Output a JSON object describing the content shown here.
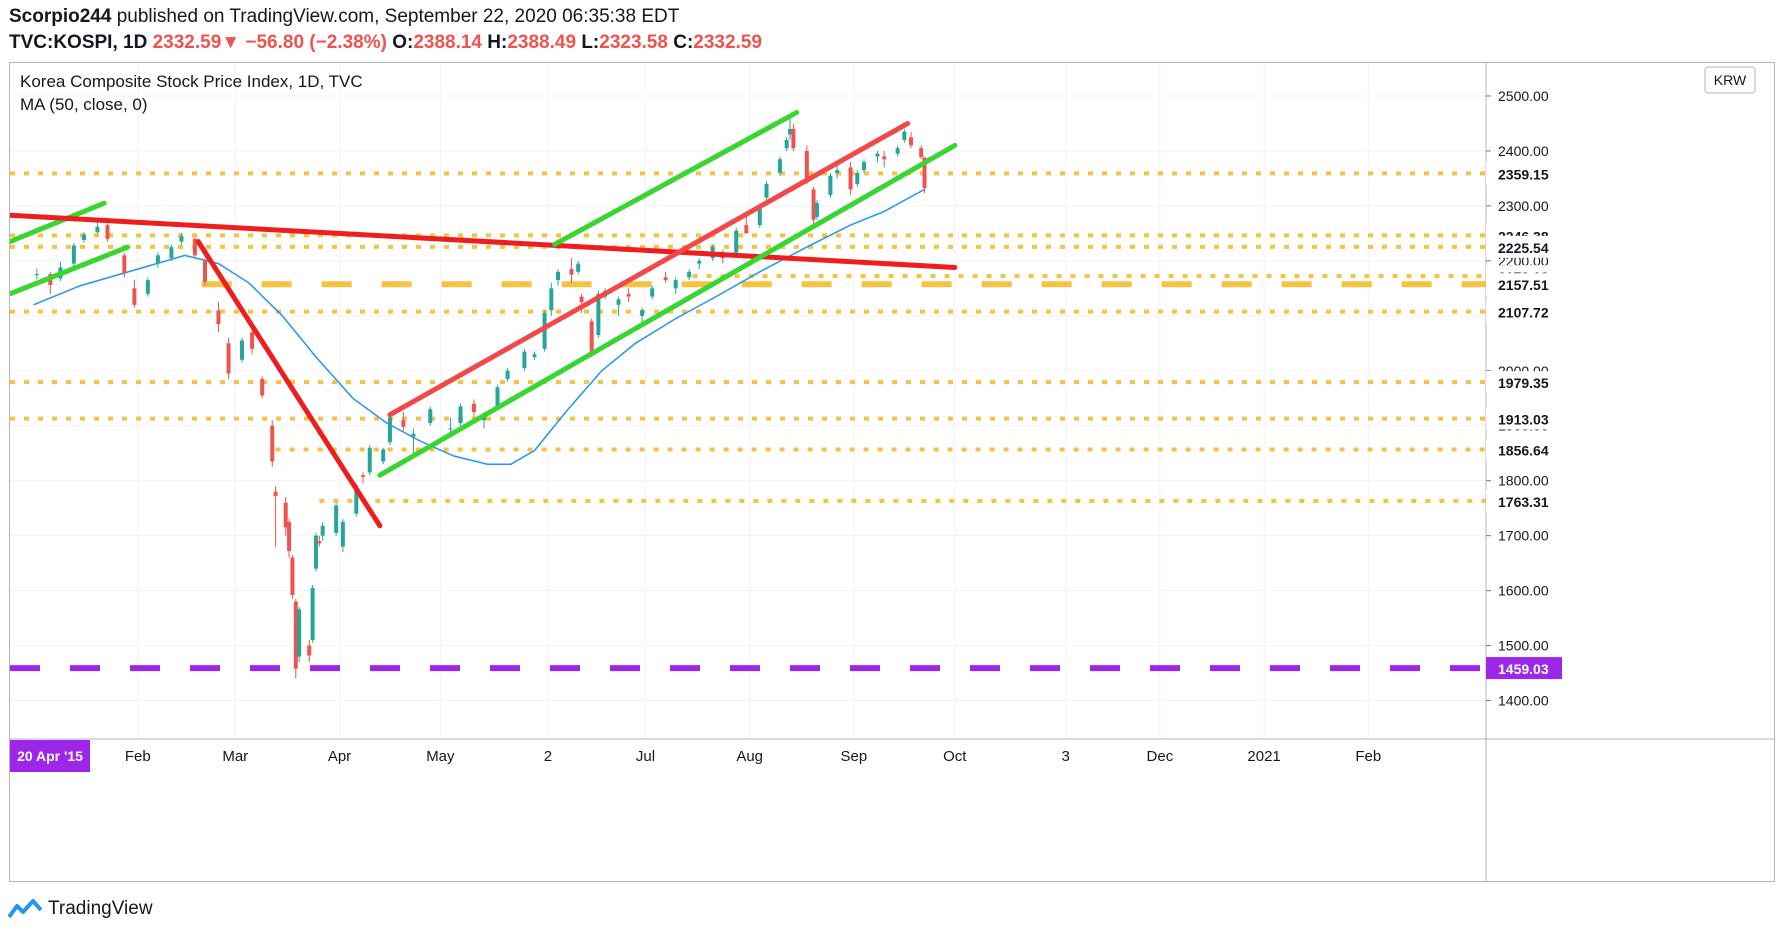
{
  "header": {
    "author": "Scorpio244",
    "published_text": "published on TradingView.com, September 22, 2020 06:35:38 EDT",
    "symbol": "TVC:KOSPI, 1D",
    "last": "2332.59",
    "change": "−56.80 (−2.38%)",
    "o_label": "O:",
    "o_value": "2388.14",
    "h_label": "H:",
    "h_value": "2388.49",
    "l_label": "L:",
    "l_value": "2323.58",
    "c_label": "C:",
    "c_value": "2332.59"
  },
  "legend": {
    "title": "Korea Composite Stock Price Index, 1D, TVC",
    "indicator": "MA (50, close, 0)"
  },
  "footer": {
    "brand": "TradingView"
  },
  "colors": {
    "up": "#26a69a",
    "down": "#ef5350",
    "ma": "#2196f3",
    "support_green": "#39d531",
    "resistance_red": "#ef1d1d",
    "level_yellow": "#f5c242",
    "level_purple": "#9c27e8",
    "axis_text": "#131722"
  },
  "chart_data": {
    "type": "candlestick",
    "currency": "KRW",
    "y_ticks": [
      "1400.00",
      "1500.00",
      "1600.00",
      "1700.00",
      "1800.00",
      "1900.00",
      "2000.00",
      "2100.00",
      "2200.00",
      "2300.00",
      "2400.00",
      "2500.00"
    ],
    "x_labels": [
      {
        "label": "20 Apr '15",
        "date": "2019-12-31",
        "badge": true
      },
      {
        "label": "Feb",
        "date": "2020-02-01"
      },
      {
        "label": "Mar",
        "date": "2020-03-01"
      },
      {
        "label": "Apr",
        "date": "2020-04-01"
      },
      {
        "label": "May",
        "date": "2020-05-01"
      },
      {
        "label": "2",
        "date": "2020-06-02"
      },
      {
        "label": "Jul",
        "date": "2020-07-01"
      },
      {
        "label": "Aug",
        "date": "2020-08-01"
      },
      {
        "label": "Sep",
        "date": "2020-09-01"
      },
      {
        "label": "Oct",
        "date": "2020-10-01"
      },
      {
        "label": "3",
        "date": "2020-11-03"
      },
      {
        "label": "Dec",
        "date": "2020-12-01"
      },
      {
        "label": "2021",
        "date": "2021-01-01"
      },
      {
        "label": "Feb",
        "date": "2021-02-01"
      }
    ],
    "x_range": [
      "2019-12-25",
      "2021-03-08"
    ],
    "y_range": [
      1330,
      2560
    ],
    "horizontal_levels": [
      {
        "price": 2359.15,
        "label": "2359.15",
        "style": "dotted",
        "color": "yellow",
        "from": "2019-12-25"
      },
      {
        "price": 2246.38,
        "label": "2246.38",
        "style": "dotted",
        "color": "yellow",
        "from": "2019-12-25"
      },
      {
        "price": 2225.54,
        "label": "2225.54",
        "style": "dotted",
        "color": "yellow",
        "from": "2019-12-25"
      },
      {
        "price": 2172.13,
        "label": "2172.13",
        "style": "dotted",
        "color": "yellow",
        "from": "2020-07-15"
      },
      {
        "price": 2157.51,
        "label": "2157.51",
        "style": "dashed",
        "color": "yellow",
        "from": "2020-02-20"
      },
      {
        "price": 2107.72,
        "label": "2107.72",
        "style": "dotted",
        "color": "yellow",
        "from": "2019-12-25"
      },
      {
        "price": 1979.35,
        "label": "1979.35",
        "style": "dotted",
        "color": "yellow",
        "from": "2019-12-25"
      },
      {
        "price": 1913.03,
        "label": "1913.03",
        "style": "dotted",
        "color": "yellow",
        "from": "2019-12-25"
      },
      {
        "price": 1856.64,
        "label": "1856.64",
        "style": "dotted",
        "color": "yellow",
        "from": "2020-03-13"
      },
      {
        "price": 1763.31,
        "label": "1763.31",
        "style": "dotted",
        "color": "yellow",
        "from": "2020-03-26"
      },
      {
        "price": 1459.03,
        "label": "1459.03",
        "style": "dashed",
        "color": "purple",
        "from": "2019-12-25"
      }
    ],
    "trendlines": [
      {
        "name": "early-support",
        "color": "green",
        "from": [
          "2019-12-25",
          2140
        ],
        "to": [
          "2020-01-29",
          2225
        ]
      },
      {
        "name": "early-upper",
        "color": "green",
        "from": [
          "2019-12-25",
          2235
        ],
        "to": [
          "2020-01-22",
          2305
        ]
      },
      {
        "name": "long-resistance",
        "color": "red",
        "from": [
          "2019-12-25",
          2283
        ],
        "to": [
          "2020-10-01",
          2188
        ]
      },
      {
        "name": "crash-downtrend",
        "color": "red",
        "from": [
          "2020-02-19",
          2235
        ],
        "to": [
          "2020-04-13",
          1718
        ]
      },
      {
        "name": "rising-channel-lower",
        "color": "green",
        "from": [
          "2020-04-13",
          1810
        ],
        "to": [
          "2020-10-01",
          2410
        ]
      },
      {
        "name": "rising-channel-upper-1",
        "color": "red",
        "from": [
          "2020-04-16",
          1920
        ],
        "to": [
          "2020-09-17",
          2450
        ]
      },
      {
        "name": "rising-channel-upper-2",
        "color": "green",
        "from": [
          "2020-06-04",
          2230
        ],
        "to": [
          "2020-08-15",
          2470
        ]
      }
    ],
    "ma_50": [
      [
        "2020-01-01",
        2120
      ],
      [
        "2020-01-15",
        2155
      ],
      [
        "2020-02-01",
        2185
      ],
      [
        "2020-02-15",
        2210
      ],
      [
        "2020-02-25",
        2195
      ],
      [
        "2020-03-05",
        2160
      ],
      [
        "2020-03-15",
        2100
      ],
      [
        "2020-03-25",
        2025
      ],
      [
        "2020-04-05",
        1950
      ],
      [
        "2020-04-15",
        1905
      ],
      [
        "2020-04-25",
        1872
      ],
      [
        "2020-05-05",
        1845
      ],
      [
        "2020-05-15",
        1830
      ],
      [
        "2020-05-22",
        1830
      ],
      [
        "2020-05-29",
        1855
      ],
      [
        "2020-06-08",
        1930
      ],
      [
        "2020-06-18",
        2000
      ],
      [
        "2020-06-28",
        2050
      ],
      [
        "2020-07-10",
        2095
      ],
      [
        "2020-07-22",
        2135
      ],
      [
        "2020-08-04",
        2180
      ],
      [
        "2020-08-18",
        2225
      ],
      [
        "2020-08-31",
        2265
      ],
      [
        "2020-09-10",
        2290
      ],
      [
        "2020-09-22",
        2330
      ]
    ],
    "candles": [
      [
        "2020-01-02",
        2175,
        2186,
        2166,
        2176
      ],
      [
        "2020-01-06",
        2176,
        2180,
        2140,
        2156
      ],
      [
        "2020-01-09",
        2168,
        2198,
        2163,
        2188
      ],
      [
        "2020-01-13",
        2195,
        2232,
        2190,
        2228
      ],
      [
        "2020-01-16",
        2238,
        2252,
        2233,
        2248
      ],
      [
        "2020-01-20",
        2252,
        2270,
        2250,
        2262
      ],
      [
        "2020-01-23",
        2265,
        2268,
        2235,
        2240
      ],
      [
        "2020-01-28",
        2210,
        2215,
        2170,
        2178
      ],
      [
        "2020-01-31",
        2150,
        2165,
        2115,
        2120
      ],
      [
        "2020-02-04",
        2140,
        2170,
        2135,
        2165
      ],
      [
        "2020-02-07",
        2195,
        2215,
        2188,
        2210
      ],
      [
        "2020-02-11",
        2205,
        2230,
        2200,
        2225
      ],
      [
        "2020-02-14",
        2235,
        2250,
        2230,
        2245
      ],
      [
        "2020-02-18",
        2240,
        2243,
        2205,
        2210
      ],
      [
        "2020-02-21",
        2200,
        2205,
        2155,
        2162
      ],
      [
        "2020-02-25",
        2110,
        2125,
        2070,
        2085
      ],
      [
        "2020-02-28",
        2050,
        2060,
        1985,
        1995
      ],
      [
        "2020-03-03",
        2020,
        2060,
        2015,
        2055
      ],
      [
        "2020-03-06",
        2070,
        2075,
        2030,
        2040
      ],
      [
        "2020-03-09",
        1985,
        1990,
        1950,
        1955
      ],
      [
        "2020-03-12",
        1900,
        1910,
        1825,
        1835
      ],
      [
        "2020-03-13",
        1780,
        1790,
        1680,
        1772
      ],
      [
        "2020-03-16",
        1760,
        1770,
        1700,
        1715
      ],
      [
        "2020-03-17",
        1725,
        1730,
        1660,
        1672
      ],
      [
        "2020-03-18",
        1660,
        1665,
        1585,
        1592
      ],
      [
        "2020-03-19",
        1580,
        1585,
        1440,
        1458
      ],
      [
        "2020-03-20",
        1480,
        1570,
        1470,
        1566
      ],
      [
        "2020-03-23",
        1500,
        1510,
        1470,
        1482
      ],
      [
        "2020-03-24",
        1510,
        1610,
        1505,
        1605
      ],
      [
        "2020-03-25",
        1640,
        1705,
        1635,
        1700
      ],
      [
        "2020-03-26",
        1690,
        1700,
        1680,
        1686
      ],
      [
        "2020-03-27",
        1700,
        1725,
        1690,
        1718
      ],
      [
        "2020-03-31",
        1705,
        1760,
        1700,
        1755
      ],
      [
        "2020-04-02",
        1680,
        1730,
        1670,
        1725
      ],
      [
        "2020-04-06",
        1740,
        1795,
        1735,
        1791
      ],
      [
        "2020-04-08",
        1810,
        1815,
        1795,
        1807
      ],
      [
        "2020-04-10",
        1815,
        1865,
        1810,
        1860
      ],
      [
        "2020-04-14",
        1835,
        1860,
        1830,
        1857
      ],
      [
        "2020-04-16",
        1870,
        1915,
        1865,
        1915
      ],
      [
        "2020-04-20",
        1910,
        1925,
        1890,
        1898
      ],
      [
        "2020-04-23",
        1880,
        1895,
        1850,
        1885
      ],
      [
        "2020-04-28",
        1905,
        1935,
        1900,
        1930
      ],
      [
        "2020-05-04",
        1895,
        1915,
        1880,
        1895
      ],
      [
        "2020-05-07",
        1905,
        1940,
        1900,
        1935
      ],
      [
        "2020-05-11",
        1940,
        1948,
        1915,
        1925
      ],
      [
        "2020-05-14",
        1910,
        1925,
        1895,
        1920
      ],
      [
        "2020-05-18",
        1935,
        1975,
        1930,
        1970
      ],
      [
        "2020-05-21",
        1985,
        2005,
        1980,
        2000
      ],
      [
        "2020-05-26",
        2005,
        2040,
        2000,
        2035
      ],
      [
        "2020-05-29",
        2025,
        2035,
        2020,
        2030
      ],
      [
        "2020-06-01",
        2040,
        2110,
        2035,
        2105
      ],
      [
        "2020-06-03",
        2110,
        2160,
        2100,
        2150
      ],
      [
        "2020-06-05",
        2165,
        2185,
        2155,
        2180
      ],
      [
        "2020-06-09",
        2185,
        2205,
        2160,
        2175
      ],
      [
        "2020-06-11",
        2180,
        2200,
        2175,
        2195
      ],
      [
        "2020-06-12",
        2135,
        2140,
        2105,
        2125
      ],
      [
        "2020-06-15",
        2090,
        2095,
        2025,
        2030
      ],
      [
        "2020-06-17",
        2065,
        2145,
        2060,
        2140
      ],
      [
        "2020-06-19",
        2135,
        2150,
        2130,
        2145
      ],
      [
        "2020-06-23",
        2120,
        2135,
        2100,
        2130
      ],
      [
        "2020-06-26",
        2140,
        2150,
        2125,
        2135
      ],
      [
        "2020-06-30",
        2100,
        2115,
        2085,
        2110
      ],
      [
        "2020-07-03",
        2135,
        2155,
        2130,
        2150
      ],
      [
        "2020-07-07",
        2170,
        2180,
        2160,
        2165
      ],
      [
        "2020-07-10",
        2150,
        2170,
        2140,
        2165
      ],
      [
        "2020-07-14",
        2170,
        2185,
        2165,
        2180
      ],
      [
        "2020-07-17",
        2195,
        2205,
        2185,
        2200
      ],
      [
        "2020-07-21",
        2205,
        2230,
        2200,
        2225
      ],
      [
        "2020-07-24",
        2215,
        2220,
        2195,
        2205
      ],
      [
        "2020-07-28",
        2215,
        2260,
        2210,
        2255
      ],
      [
        "2020-07-31",
        2265,
        2285,
        2250,
        2250
      ],
      [
        "2020-08-04",
        2265,
        2305,
        2260,
        2300
      ],
      [
        "2020-08-06",
        2315,
        2345,
        2310,
        2340
      ],
      [
        "2020-08-10",
        2360,
        2390,
        2355,
        2385
      ],
      [
        "2020-08-12",
        2405,
        2425,
        2400,
        2420
      ],
      [
        "2020-08-13",
        2430,
        2460,
        2420,
        2440
      ],
      [
        "2020-08-14",
        2440,
        2450,
        2400,
        2405
      ],
      [
        "2020-08-18",
        2400,
        2410,
        2340,
        2350
      ],
      [
        "2020-08-20",
        2330,
        2335,
        2265,
        2275
      ],
      [
        "2020-08-21",
        2280,
        2310,
        2275,
        2305
      ],
      [
        "2020-08-25",
        2320,
        2360,
        2315,
        2355
      ],
      [
        "2020-08-27",
        2360,
        2375,
        2350,
        2365
      ],
      [
        "2020-08-31",
        2370,
        2380,
        2320,
        2330
      ],
      [
        "2020-09-02",
        2340,
        2365,
        2335,
        2360
      ],
      [
        "2020-09-04",
        2365,
        2385,
        2360,
        2380
      ],
      [
        "2020-09-08",
        2390,
        2400,
        2380,
        2395
      ],
      [
        "2020-09-10",
        2390,
        2400,
        2370,
        2385
      ],
      [
        "2020-09-14",
        2395,
        2410,
        2390,
        2405
      ],
      [
        "2020-09-16",
        2420,
        2440,
        2415,
        2435
      ],
      [
        "2020-09-18",
        2425,
        2435,
        2405,
        2410
      ],
      [
        "2020-09-21",
        2405,
        2410,
        2385,
        2389
      ],
      [
        "2020-09-22",
        2388.14,
        2388.49,
        2323.58,
        2332.59
      ]
    ]
  }
}
